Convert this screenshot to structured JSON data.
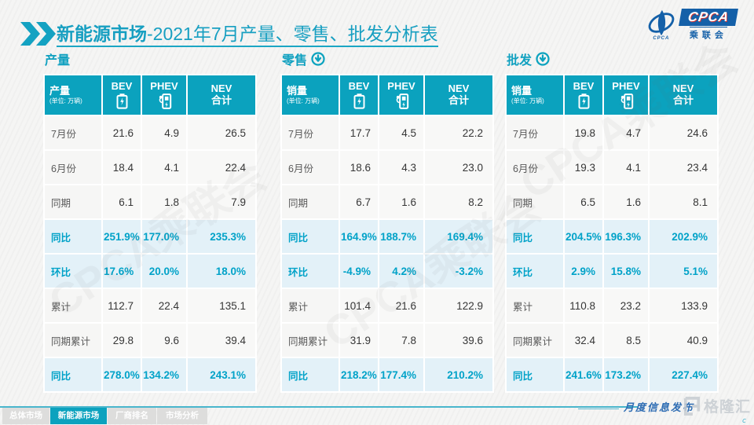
{
  "title": {
    "bold": "新能源市场",
    "rest": "-2021年7月产量、零售、批发分析表"
  },
  "cpca_logo": {
    "acronym": "CPCA",
    "emblem_text": "CPCA",
    "cn_name": "乘联会"
  },
  "watermark_text": "CPCA乘联会",
  "icons": {
    "chevron": "double-chevron-right-icon",
    "bev": "battery-icon",
    "phev": "charging-pile-icon",
    "section_arrow": "circled-down-arrow-icon",
    "brand": "gelonghui-logo"
  },
  "tables": [
    {
      "section_title": "产量",
      "has_arrow": false,
      "measure_label": "产量",
      "unit_label": "(单位: 万辆)",
      "columns": [
        {
          "label": "BEV"
        },
        {
          "label": "PHEV"
        },
        {
          "label": "NEV",
          "label2": "合计"
        }
      ],
      "rows": [
        {
          "label": "7月份",
          "values": [
            "21.6",
            "4.9",
            "26.5"
          ],
          "highlight": false
        },
        {
          "label": "6月份",
          "values": [
            "18.4",
            "4.1",
            "22.4"
          ],
          "highlight": false
        },
        {
          "label": "同期",
          "values": [
            "6.1",
            "1.8",
            "7.9"
          ],
          "highlight": false
        },
        {
          "label": "同比",
          "values": [
            "251.9%",
            "177.0%",
            "235.3%"
          ],
          "highlight": true
        },
        {
          "label": "环比",
          "values": [
            "17.6%",
            "20.0%",
            "18.0%"
          ],
          "highlight": true
        },
        {
          "label": "累计",
          "values": [
            "112.7",
            "22.4",
            "135.1"
          ],
          "highlight": false
        },
        {
          "label": "同期累计",
          "values": [
            "29.8",
            "9.6",
            "39.4"
          ],
          "highlight": false
        },
        {
          "label": "同比",
          "values": [
            "278.0%",
            "134.2%",
            "243.1%"
          ],
          "highlight": true
        }
      ]
    },
    {
      "section_title": "零售",
      "has_arrow": true,
      "measure_label": "销量",
      "unit_label": "(单位: 万辆)",
      "columns": [
        {
          "label": "BEV"
        },
        {
          "label": "PHEV"
        },
        {
          "label": "NEV",
          "label2": "合计"
        }
      ],
      "rows": [
        {
          "label": "7月份",
          "values": [
            "17.7",
            "4.5",
            "22.2"
          ],
          "highlight": false
        },
        {
          "label": "6月份",
          "values": [
            "18.6",
            "4.3",
            "23.0"
          ],
          "highlight": false
        },
        {
          "label": "同期",
          "values": [
            "6.7",
            "1.6",
            "8.2"
          ],
          "highlight": false
        },
        {
          "label": "同比",
          "values": [
            "164.9%",
            "188.7%",
            "169.4%"
          ],
          "highlight": true
        },
        {
          "label": "环比",
          "values": [
            "-4.9%",
            "4.2%",
            "-3.2%"
          ],
          "highlight": true
        },
        {
          "label": "累计",
          "values": [
            "101.4",
            "21.6",
            "122.9"
          ],
          "highlight": false
        },
        {
          "label": "同期累计",
          "values": [
            "31.9",
            "7.8",
            "39.6"
          ],
          "highlight": false
        },
        {
          "label": "同比",
          "values": [
            "218.2%",
            "177.4%",
            "210.2%"
          ],
          "highlight": true
        }
      ]
    },
    {
      "section_title": "批发",
      "has_arrow": true,
      "measure_label": "销量",
      "unit_label": "(单位: 万辆)",
      "columns": [
        {
          "label": "BEV"
        },
        {
          "label": "PHEV"
        },
        {
          "label": "NEV",
          "label2": "合计"
        }
      ],
      "rows": [
        {
          "label": "7月份",
          "values": [
            "19.8",
            "4.7",
            "24.6"
          ],
          "highlight": false
        },
        {
          "label": "6月份",
          "values": [
            "19.3",
            "4.1",
            "23.4"
          ],
          "highlight": false
        },
        {
          "label": "同期",
          "values": [
            "6.5",
            "1.6",
            "8.1"
          ],
          "highlight": false
        },
        {
          "label": "同比",
          "values": [
            "204.5%",
            "196.3%",
            "202.9%"
          ],
          "highlight": true
        },
        {
          "label": "环比",
          "values": [
            "2.9%",
            "15.8%",
            "5.1%"
          ],
          "highlight": true
        },
        {
          "label": "累计",
          "values": [
            "110.8",
            "23.2",
            "133.9"
          ],
          "highlight": false
        },
        {
          "label": "同期累计",
          "values": [
            "32.4",
            "8.5",
            "40.9"
          ],
          "highlight": false
        },
        {
          "label": "同比",
          "values": [
            "241.6%",
            "173.2%",
            "227.4%"
          ],
          "highlight": true
        }
      ]
    }
  ],
  "footer": {
    "tabs": [
      {
        "label": "总体市场",
        "active": false
      },
      {
        "label": "新能源市场",
        "active": true
      },
      {
        "label": "厂商排名",
        "active": false
      },
      {
        "label": "市场分析",
        "active": false
      }
    ],
    "right_note": "月度信息发布",
    "brand": "格隆汇"
  }
}
